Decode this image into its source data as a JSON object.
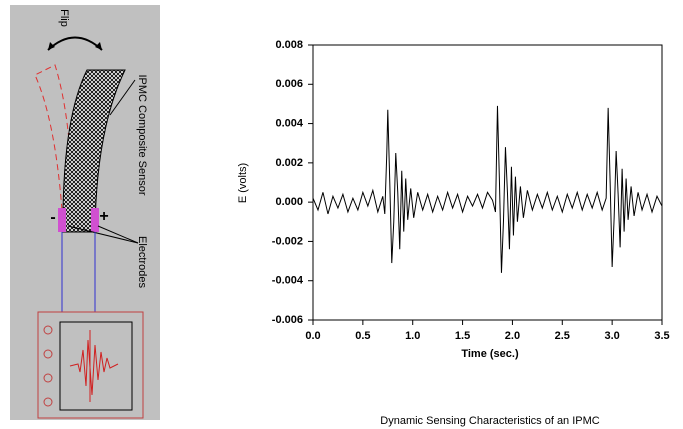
{
  "diagram": {
    "flip": "Flip",
    "sensor": "IPMC Composite Sensor",
    "electrodes": "Electrodes",
    "minus": "-",
    "plus": "+"
  },
  "chart_data": {
    "type": "line",
    "title": "Dynamic Sensing Characteristics of an IPMC",
    "x_label": "Time (sec.)",
    "y_label": "E (volts)",
    "xlim": [
      0,
      3.5
    ],
    "ylim": [
      -0.006,
      0.008
    ],
    "xticks": [
      {
        "value": 0,
        "label": "0.0"
      },
      0.5,
      {
        "value": 1,
        "label": "1.0"
      },
      1.5,
      {
        "value": 2,
        "label": "2.0"
      },
      2.5,
      {
        "value": 3,
        "label": "3.0"
      },
      3.5
    ],
    "yticks": [
      0.008,
      0.006,
      0.004,
      0.002,
      {
        "value": 0,
        "label": "0.000"
      },
      -0.002,
      -0.004,
      -0.006
    ],
    "color": "#000000",
    "x": [
      0,
      0.05,
      0.1,
      0.15,
      0.2,
      0.25,
      0.3,
      0.35,
      0.4,
      0.45,
      0.5,
      0.55,
      0.6,
      0.65,
      0.7,
      0.72,
      0.74,
      0.75,
      0.77,
      0.79,
      0.81,
      0.83,
      0.85,
      0.87,
      0.89,
      0.91,
      0.93,
      0.95,
      0.98,
      1.01,
      1.05,
      1.1,
      1.15,
      1.2,
      1.25,
      1.3,
      1.35,
      1.4,
      1.45,
      1.5,
      1.55,
      1.6,
      1.65,
      1.7,
      1.75,
      1.8,
      1.83,
      1.85,
      1.87,
      1.89,
      1.91,
      1.93,
      1.95,
      1.97,
      1.99,
      2.01,
      2.03,
      2.05,
      2.08,
      2.11,
      2.15,
      2.2,
      2.25,
      2.3,
      2.35,
      2.4,
      2.45,
      2.5,
      2.55,
      2.6,
      2.65,
      2.7,
      2.75,
      2.8,
      2.85,
      2.9,
      2.94,
      2.96,
      2.98,
      3.0,
      3.02,
      3.04,
      3.06,
      3.08,
      3.1,
      3.12,
      3.14,
      3.16,
      3.19,
      3.22,
      3.26,
      3.3,
      3.35,
      3.4,
      3.45,
      3.5
    ],
    "values": [
      0.0002,
      -0.0004,
      0.0005,
      -0.0006,
      0.0003,
      -0.0003,
      0.0004,
      -0.0005,
      0.0002,
      -0.0004,
      0.0005,
      -0.0002,
      0.0006,
      -0.0005,
      0.0003,
      -0.0006,
      0.0025,
      0.0047,
      0.001,
      -0.0031,
      -0.001,
      0.0025,
      0.0005,
      -0.0024,
      0.0016,
      -0.0015,
      0.0012,
      -0.0009,
      0.0007,
      -0.0008,
      0.0005,
      -0.0004,
      0.0004,
      -0.0005,
      0.0003,
      -0.0004,
      0.0005,
      -0.0003,
      0.0004,
      -0.0005,
      0.0003,
      -0.0002,
      0.0004,
      -0.0003,
      0.0005,
      0.0001,
      -0.0005,
      0.0049,
      0.001,
      -0.0036,
      -0.001,
      0.0028,
      0.0005,
      -0.0024,
      0.0018,
      -0.0017,
      0.0013,
      -0.001,
      0.0008,
      -0.0008,
      0.0006,
      -0.0004,
      0.0004,
      -0.0003,
      0.0005,
      -0.0004,
      0.0003,
      -0.0005,
      0.0004,
      -0.0003,
      0.0005,
      -0.0004,
      0.0004,
      -0.0003,
      0.0005,
      -0.0004,
      0.0002,
      0.0048,
      0.001,
      -0.0033,
      -0.0008,
      0.0026,
      0.0004,
      -0.0023,
      0.0017,
      -0.0015,
      0.0012,
      -0.0009,
      0.0008,
      -0.0007,
      0.0005,
      -0.0004,
      0.0004,
      -0.0005,
      0.0003,
      -0.0002
    ]
  }
}
